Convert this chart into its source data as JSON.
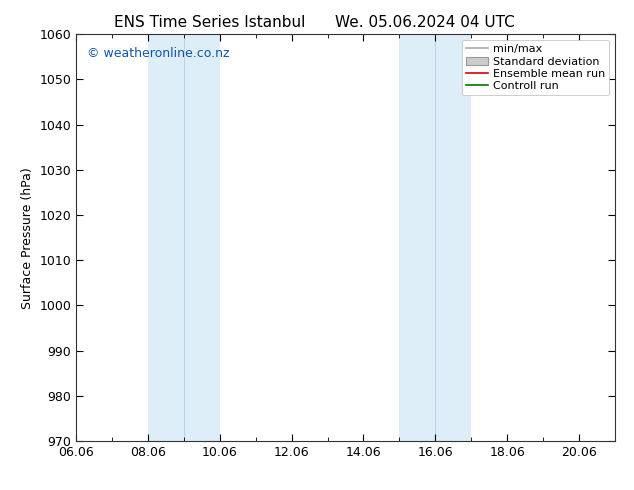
{
  "title_left": "ENS Time Series Istanbul",
  "title_right": "We. 05.06.2024 04 UTC",
  "ylabel": "Surface Pressure (hPa)",
  "ylim": [
    970,
    1060
  ],
  "yticks": [
    970,
    980,
    990,
    1000,
    1010,
    1020,
    1030,
    1040,
    1050,
    1060
  ],
  "xlim": [
    0,
    15
  ],
  "xtick_labels": [
    "06.06",
    "08.06",
    "10.06",
    "12.06",
    "14.06",
    "16.06",
    "18.06",
    "20.06"
  ],
  "xtick_positions": [
    0,
    2,
    4,
    6,
    8,
    10,
    12,
    14
  ],
  "shaded_bands": [
    {
      "start": 2.0,
      "end": 3.0,
      "color": "#ddeef8"
    },
    {
      "start": 3.0,
      "end": 4.0,
      "color": "#ddeef8"
    },
    {
      "start": 9.0,
      "end": 10.0,
      "color": "#ddeef8"
    },
    {
      "start": 10.0,
      "end": 11.0,
      "color": "#ddeef8"
    }
  ],
  "legend_items": [
    {
      "label": "min/max",
      "type": "hline",
      "color": "#aaaaaa"
    },
    {
      "label": "Standard deviation",
      "type": "box",
      "facecolor": "#cccccc",
      "edgecolor": "#999999"
    },
    {
      "label": "Ensemble mean run",
      "type": "hline",
      "color": "#dd0000"
    },
    {
      "label": "Controll run",
      "type": "hline",
      "color": "#007700"
    }
  ],
  "watermark": "© weatheronline.co.nz",
  "watermark_color": "#1155aa",
  "background_color": "#ffffff",
  "plot_bg_color": "#ffffff",
  "title_fontsize": 11,
  "axis_label_fontsize": 9,
  "tick_fontsize": 9,
  "legend_fontsize": 8,
  "watermark_fontsize": 9
}
